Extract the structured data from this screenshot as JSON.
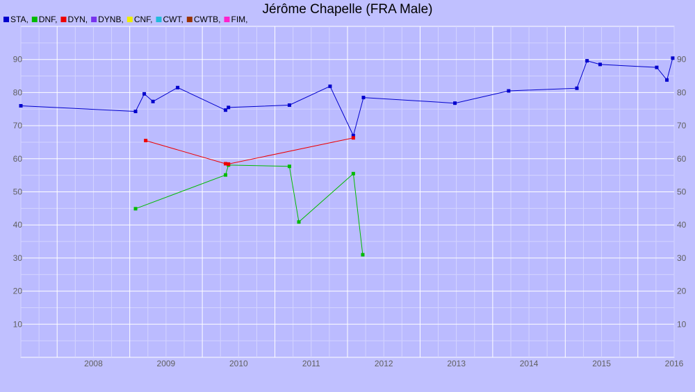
{
  "chart_data": {
    "type": "line",
    "title": "Jérôme Chapelle (FRA Male)",
    "xlabel": "",
    "ylabel": "",
    "xlim": [
      2007.5,
      2016.5
    ],
    "ylim": [
      0,
      100
    ],
    "x_ticks": [
      "2008",
      "2009",
      "2010",
      "2011",
      "2012",
      "2013",
      "2014",
      "2015",
      "2016"
    ],
    "y_ticks": [
      10,
      20,
      30,
      40,
      50,
      60,
      70,
      80,
      90
    ],
    "grid": true,
    "legend_position": "top-left",
    "legend": [
      {
        "label": "STA,",
        "color": "#0000cc"
      },
      {
        "label": "DNF,",
        "color": "#00bb00"
      },
      {
        "label": "DYN,",
        "color": "#ee0000"
      },
      {
        "label": "DYNB,",
        "color": "#7733ee"
      },
      {
        "label": "CNF,",
        "color": "#eeee00"
      },
      {
        "label": "CWT,",
        "color": "#22bbdd"
      },
      {
        "label": "CWTB,",
        "color": "#993300"
      },
      {
        "label": "FIM,",
        "color": "#ff22cc"
      }
    ],
    "series": [
      {
        "name": "STA",
        "color": "#0000cc",
        "points": [
          [
            2007.5,
            76.0
          ],
          [
            2009.08,
            74.3
          ],
          [
            2009.2,
            79.6
          ],
          [
            2009.32,
            77.3
          ],
          [
            2009.66,
            81.5
          ],
          [
            2010.32,
            74.7
          ],
          [
            2010.36,
            75.5
          ],
          [
            2011.2,
            76.2
          ],
          [
            2011.76,
            81.9
          ],
          [
            2012.08,
            67.0
          ],
          [
            2012.22,
            78.5
          ],
          [
            2013.48,
            76.8
          ],
          [
            2014.22,
            80.5
          ],
          [
            2015.16,
            81.3
          ],
          [
            2015.3,
            89.6
          ],
          [
            2015.48,
            88.5
          ],
          [
            2016.26,
            87.6
          ],
          [
            2016.4,
            83.8
          ],
          [
            2016.48,
            90.4
          ]
        ]
      },
      {
        "name": "DNF",
        "color": "#00bb00",
        "points": [
          [
            2009.08,
            44.9
          ],
          [
            2010.32,
            55.1
          ],
          [
            2010.36,
            58.1
          ],
          [
            2011.2,
            57.7
          ],
          [
            2011.33,
            40.9
          ],
          [
            2012.08,
            55.5
          ],
          [
            2012.21,
            31.0
          ]
        ]
      },
      {
        "name": "DYN",
        "color": "#ee0000",
        "points": [
          [
            2009.22,
            65.5
          ],
          [
            2010.32,
            58.5
          ],
          [
            2010.36,
            58.4
          ],
          [
            2012.08,
            66.3
          ]
        ]
      }
    ]
  }
}
